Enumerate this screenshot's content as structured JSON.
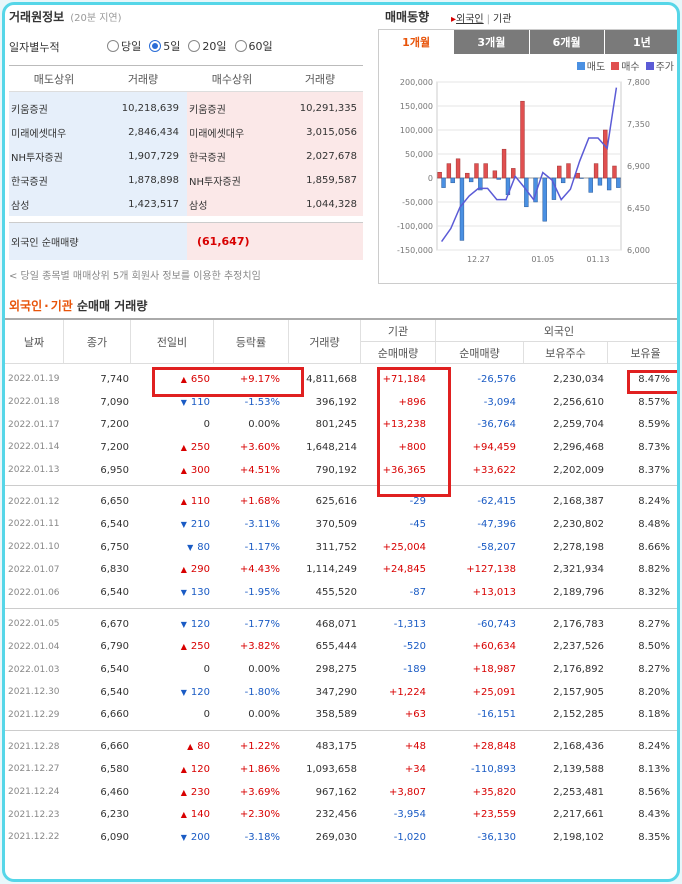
{
  "trade_info": {
    "title": "거래원정보",
    "subtitle": "(20분 지연)",
    "filter_label": "일자별누적",
    "periods": [
      {
        "label": "당일",
        "checked": false
      },
      {
        "label": "5일",
        "checked": true
      },
      {
        "label": "20일",
        "checked": false
      },
      {
        "label": "60일",
        "checked": false
      }
    ],
    "headers": [
      "매도상위",
      "거래량",
      "매수상위",
      "거래량"
    ],
    "sell_top": [
      {
        "name": "키움증권",
        "volume": "10,218,639"
      },
      {
        "name": "미래에셋대우",
        "volume": "2,846,434"
      },
      {
        "name": "NH투자증권",
        "volume": "1,907,729"
      },
      {
        "name": "한국증권",
        "volume": "1,878,898"
      },
      {
        "name": "삼성",
        "volume": "1,423,517"
      }
    ],
    "buy_top": [
      {
        "name": "키움증권",
        "volume": "10,291,335"
      },
      {
        "name": "미래에셋대우",
        "volume": "3,015,056"
      },
      {
        "name": "한국증권",
        "volume": "2,027,678"
      },
      {
        "name": "NH투자증권",
        "volume": "1,859,587"
      },
      {
        "name": "삼성",
        "volume": "1,044,328"
      }
    ],
    "net_label": "외국인 순매매량",
    "net_value": "(61,647)",
    "note": "< 당일 종목별 매매상위 5개 회원사 정보를 이용한 추정치임"
  },
  "trend": {
    "title": "매매동향",
    "links": {
      "arrow": "▸",
      "foreign": "외국인",
      "sep": "|",
      "inst": "기관"
    },
    "tabs": [
      "1개월",
      "3개월",
      "6개월",
      "1년"
    ],
    "active_tab": 0,
    "legend": [
      {
        "label": "매도",
        "color": "#4a90e2"
      },
      {
        "label": "매수",
        "color": "#e05050"
      },
      {
        "label": "주가",
        "color": "#5b5bd6"
      }
    ]
  },
  "chart_data": {
    "type": "bar",
    "y_left": {
      "min": -150000,
      "max": 200000,
      "ticks": [
        "200,000",
        "150,000",
        "100,000",
        "50,000",
        "0",
        "-50,000",
        "-100,000",
        "-150,000"
      ]
    },
    "y_right": {
      "min": 6000,
      "max": 7800,
      "ticks": [
        "7,800",
        "7,350",
        "6,900",
        "6,450",
        "6,000"
      ]
    },
    "x_ticks": [
      "12.27",
      "01.05",
      "01.13"
    ],
    "series": [
      {
        "name": "매도",
        "color": "#4a90e2",
        "values": [
          -20000,
          -10000,
          -130000,
          -8000,
          -25000,
          0,
          -3000,
          -35000,
          0,
          -60000,
          -50000,
          -90000,
          -45000,
          -10000,
          0,
          -1000,
          -30000,
          -15000,
          -25000,
          -20000
        ]
      },
      {
        "name": "매수",
        "color": "#e05050",
        "values": [
          12000,
          30000,
          40000,
          10000,
          30000,
          30000,
          15000,
          60000,
          20000,
          160000,
          0,
          0,
          0,
          25000,
          30000,
          10000,
          0,
          30000,
          100000,
          25000
        ]
      },
      {
        "name": "주가",
        "color": "#5b5bd6",
        "values": [
          6090,
          6230,
          6460,
          6580,
          6660,
          6660,
          6540,
          6540,
          6790,
          6670,
          6540,
          6830,
          6750,
          6540,
          6650,
          6950,
          7200,
          7200,
          7090,
          7740
        ]
      }
    ]
  },
  "section": {
    "title_a": "외국인",
    "sep": "·",
    "title_b": "기관",
    "title_c": "순매매 거래량"
  },
  "table": {
    "headers": {
      "date": "날짜",
      "close": "종가",
      "change": "전일비",
      "rate": "등락률",
      "volume": "거래량",
      "inst": "기관",
      "inst_net": "순매매량",
      "foreign": "외국인",
      "foreign_net": "순매매량",
      "holdings": "보유주수",
      "ratio": "보유율"
    },
    "groups": [
      [
        {
          "date": "2022.01.19",
          "close": "7,740",
          "dir": "up",
          "change": "650",
          "rate": "+9.17%",
          "volume": "4,811,668",
          "inst": "+71,184",
          "foreign": "-26,576",
          "holdings": "2,230,034",
          "ratio": "8.47%"
        },
        {
          "date": "2022.01.18",
          "close": "7,090",
          "dir": "down",
          "change": "110",
          "rate": "-1.53%",
          "volume": "396,192",
          "inst": "+896",
          "foreign": "-3,094",
          "holdings": "2,256,610",
          "ratio": "8.57%"
        },
        {
          "date": "2022.01.17",
          "close": "7,200",
          "dir": "none",
          "change": "0",
          "rate": "0.00%",
          "volume": "801,245",
          "inst": "+13,238",
          "foreign": "-36,764",
          "holdings": "2,259,704",
          "ratio": "8.59%"
        },
        {
          "date": "2022.01.14",
          "close": "7,200",
          "dir": "up",
          "change": "250",
          "rate": "+3.60%",
          "volume": "1,648,214",
          "inst": "+800",
          "foreign": "+94,459",
          "holdings": "2,296,468",
          "ratio": "8.73%"
        },
        {
          "date": "2022.01.13",
          "close": "6,950",
          "dir": "up",
          "change": "300",
          "rate": "+4.51%",
          "volume": "790,192",
          "inst": "+36,365",
          "foreign": "+33,622",
          "holdings": "2,202,009",
          "ratio": "8.37%"
        }
      ],
      [
        {
          "date": "2022.01.12",
          "close": "6,650",
          "dir": "up",
          "change": "110",
          "rate": "+1.68%",
          "volume": "625,616",
          "inst": "-29",
          "foreign": "-62,415",
          "holdings": "2,168,387",
          "ratio": "8.24%"
        },
        {
          "date": "2022.01.11",
          "close": "6,540",
          "dir": "down",
          "change": "210",
          "rate": "-3.11%",
          "volume": "370,509",
          "inst": "-45",
          "foreign": "-47,396",
          "holdings": "2,230,802",
          "ratio": "8.48%"
        },
        {
          "date": "2022.01.10",
          "close": "6,750",
          "dir": "down",
          "change": "80",
          "rate": "-1.17%",
          "volume": "311,752",
          "inst": "+25,004",
          "foreign": "-58,207",
          "holdings": "2,278,198",
          "ratio": "8.66%"
        },
        {
          "date": "2022.01.07",
          "close": "6,830",
          "dir": "up",
          "change": "290",
          "rate": "+4.43%",
          "volume": "1,114,249",
          "inst": "+24,845",
          "foreign": "+127,138",
          "holdings": "2,321,934",
          "ratio": "8.82%"
        },
        {
          "date": "2022.01.06",
          "close": "6,540",
          "dir": "down",
          "change": "130",
          "rate": "-1.95%",
          "volume": "455,520",
          "inst": "-87",
          "foreign": "+13,013",
          "holdings": "2,189,796",
          "ratio": "8.32%"
        }
      ],
      [
        {
          "date": "2022.01.05",
          "close": "6,670",
          "dir": "down",
          "change": "120",
          "rate": "-1.77%",
          "volume": "468,071",
          "inst": "-1,313",
          "foreign": "-60,743",
          "holdings": "2,176,783",
          "ratio": "8.27%"
        },
        {
          "date": "2022.01.04",
          "close": "6,790",
          "dir": "up",
          "change": "250",
          "rate": "+3.82%",
          "volume": "655,444",
          "inst": "-520",
          "foreign": "+60,634",
          "holdings": "2,237,526",
          "ratio": "8.50%"
        },
        {
          "date": "2022.01.03",
          "close": "6,540",
          "dir": "none",
          "change": "0",
          "rate": "0.00%",
          "volume": "298,275",
          "inst": "-189",
          "foreign": "+18,987",
          "holdings": "2,176,892",
          "ratio": "8.27%"
        },
        {
          "date": "2021.12.30",
          "close": "6,540",
          "dir": "down",
          "change": "120",
          "rate": "-1.80%",
          "volume": "347,290",
          "inst": "+1,224",
          "foreign": "+25,091",
          "holdings": "2,157,905",
          "ratio": "8.20%"
        },
        {
          "date": "2021.12.29",
          "close": "6,660",
          "dir": "none",
          "change": "0",
          "rate": "0.00%",
          "volume": "358,589",
          "inst": "+63",
          "foreign": "-16,151",
          "holdings": "2,152,285",
          "ratio": "8.18%"
        }
      ],
      [
        {
          "date": "2021.12.28",
          "close": "6,660",
          "dir": "up",
          "change": "80",
          "rate": "+1.22%",
          "volume": "483,175",
          "inst": "+48",
          "foreign": "+28,848",
          "holdings": "2,168,436",
          "ratio": "8.24%"
        },
        {
          "date": "2021.12.27",
          "close": "6,580",
          "dir": "up",
          "change": "120",
          "rate": "+1.86%",
          "volume": "1,093,658",
          "inst": "+34",
          "foreign": "-110,893",
          "holdings": "2,139,588",
          "ratio": "8.13%"
        },
        {
          "date": "2021.12.24",
          "close": "6,460",
          "dir": "up",
          "change": "230",
          "rate": "+3.69%",
          "volume": "967,162",
          "inst": "+3,807",
          "foreign": "+35,820",
          "holdings": "2,253,481",
          "ratio": "8.56%"
        },
        {
          "date": "2021.12.23",
          "close": "6,230",
          "dir": "up",
          "change": "140",
          "rate": "+2.30%",
          "volume": "232,456",
          "inst": "-3,954",
          "foreign": "+23,559",
          "holdings": "2,217,661",
          "ratio": "8.43%"
        },
        {
          "date": "2021.12.22",
          "close": "6,090",
          "dir": "down",
          "change": "200",
          "rate": "-3.18%",
          "volume": "269,030",
          "inst": "-1,020",
          "foreign": "-36,130",
          "holdings": "2,198,102",
          "ratio": "8.35%"
        }
      ]
    ]
  }
}
